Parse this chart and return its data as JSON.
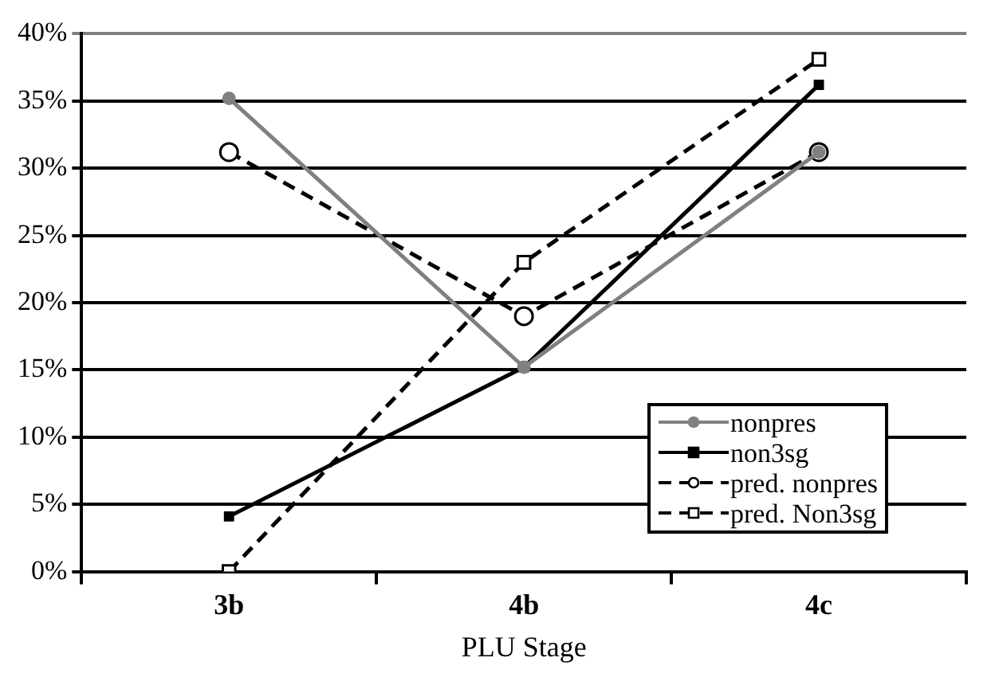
{
  "chart_data": {
    "type": "line",
    "xlabel": "PLU Stage",
    "categories": [
      "3b",
      "4b",
      "4c"
    ],
    "series": [
      {
        "name": "nonpres",
        "color": "#808080",
        "values": [
          35.2,
          15.2,
          31.2
        ],
        "marker": "circle",
        "line_style": "solid"
      },
      {
        "name": "non3sg",
        "color": "#000000",
        "values": [
          4.1,
          15.2,
          36.2
        ],
        "marker": "square",
        "line_style": "solid"
      },
      {
        "name": "pred. nonpres",
        "color": "#000000",
        "values": [
          31.2,
          19.0,
          31.2
        ],
        "marker": "circle",
        "line_style": "dashed"
      },
      {
        "name": "pred. Non3sg",
        "color": "#000000",
        "values": [
          0,
          23.0,
          38.1
        ],
        "marker": "square",
        "line_style": "dashed"
      }
    ],
    "ylim": [
      0,
      40
    ],
    "yticks": [
      {
        "value": 0,
        "label": "0%"
      },
      {
        "value": 5,
        "label": "5%"
      },
      {
        "value": 10,
        "label": "10%"
      },
      {
        "value": 15,
        "label": "15%"
      },
      {
        "value": 20,
        "label": "20%"
      },
      {
        "value": 25,
        "label": "25%"
      },
      {
        "value": 30,
        "label": "30%"
      },
      {
        "value": 35,
        "label": "35%"
      },
      {
        "value": 40,
        "label": "40%"
      }
    ],
    "grid": "y",
    "legend": "bottom right"
  }
}
